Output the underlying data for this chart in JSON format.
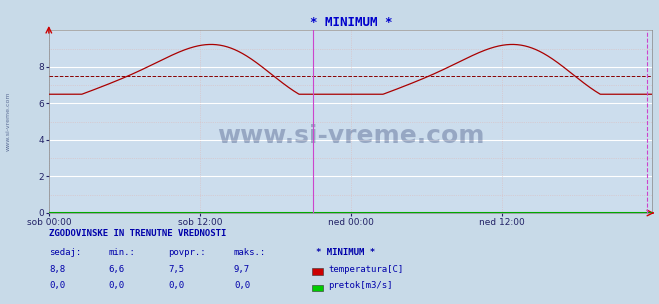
{
  "title": "* MINIMUM *",
  "title_color": "#0000cc",
  "bg_color": "#ccdded",
  "fig_bg_color": "#c8dae8",
  "grid_color_major": "#ffffff",
  "grid_color_minor": "#ddbbbb",
  "xlabel_ticks": [
    "sob 00:00",
    "sob 12:00",
    "ned 00:00",
    "ned 12:00"
  ],
  "xlabel_tick_positions": [
    0,
    288,
    576,
    864
  ],
  "total_points": 1152,
  "ylim": [
    0,
    10
  ],
  "yticks": [
    0,
    2,
    4,
    6,
    8
  ],
  "avg_line_value": 7.5,
  "avg_line_color": "#880000",
  "temp_line_color": "#aa0000",
  "flow_line_color": "#00aa00",
  "watermark_color": "#334477",
  "magenta_line_x": 504,
  "magenta_color": "#cc44cc",
  "arrow_color": "#cc0000",
  "sidebar_text": "www.si-vreme.com",
  "sidebar_color": "#334477",
  "table_header": "ZGODOVINSKE IN TRENUTNE VREDNOSTI",
  "table_cols": [
    "sedaj:",
    "min.:",
    "povpr.:",
    "maks.:"
  ],
  "table_row1": [
    "8,8",
    "6,6",
    "7,5",
    "9,7"
  ],
  "table_row2": [
    "0,0",
    "0,0",
    "0,0",
    "0,0"
  ],
  "legend_label1": "temperatura[C]",
  "legend_label2": "pretok[m3/s]",
  "legend_title": "* MINIMUM *",
  "legend_color1": "#cc0000",
  "legend_color2": "#00cc00",
  "table_text_color": "#0000aa"
}
